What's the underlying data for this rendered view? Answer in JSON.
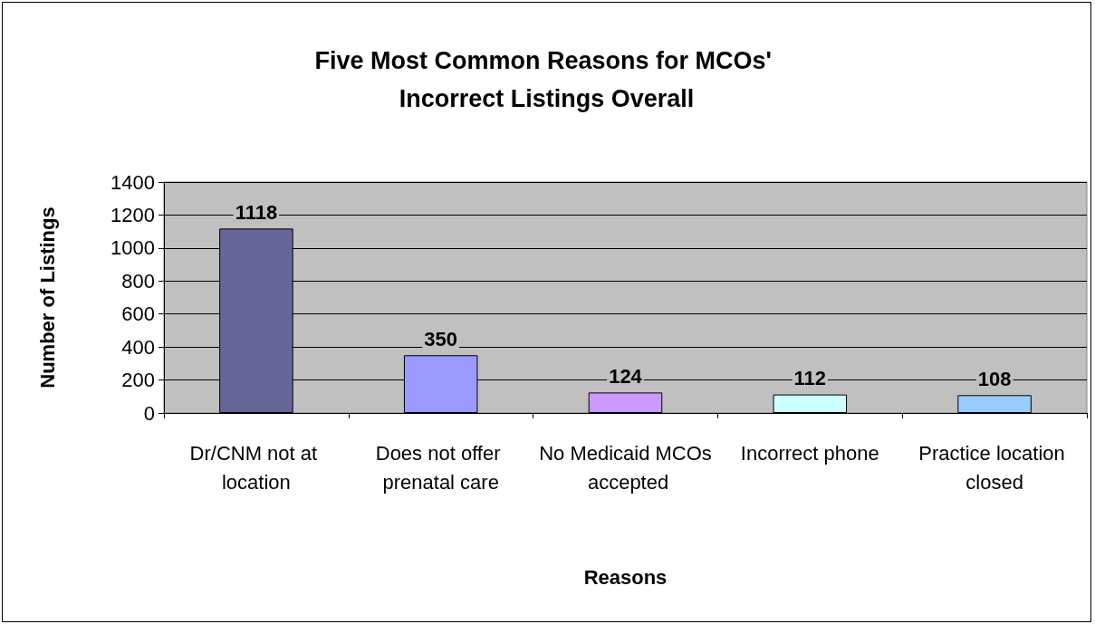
{
  "chart_data": {
    "type": "bar",
    "title": "Five Most Common Reasons for MCOs' Incorrect Listings Overall",
    "xlabel": "Reasons",
    "ylabel": "Number of Listings",
    "categories": [
      "Dr/CNM not at location",
      "Does not offer prenatal care",
      "No Medicaid MCOs accepted",
      "Incorrect phone",
      "Practice location closed"
    ],
    "values": [
      1118,
      350,
      124,
      112,
      108
    ],
    "colors": [
      "#666699",
      "#9999ff",
      "#cc99ff",
      "#ccffff",
      "#99ccff"
    ],
    "ylim": [
      0,
      1400
    ],
    "yticks": [
      0,
      200,
      400,
      600,
      800,
      1000,
      1200,
      1400
    ],
    "grid": "y",
    "data_labels": true
  }
}
